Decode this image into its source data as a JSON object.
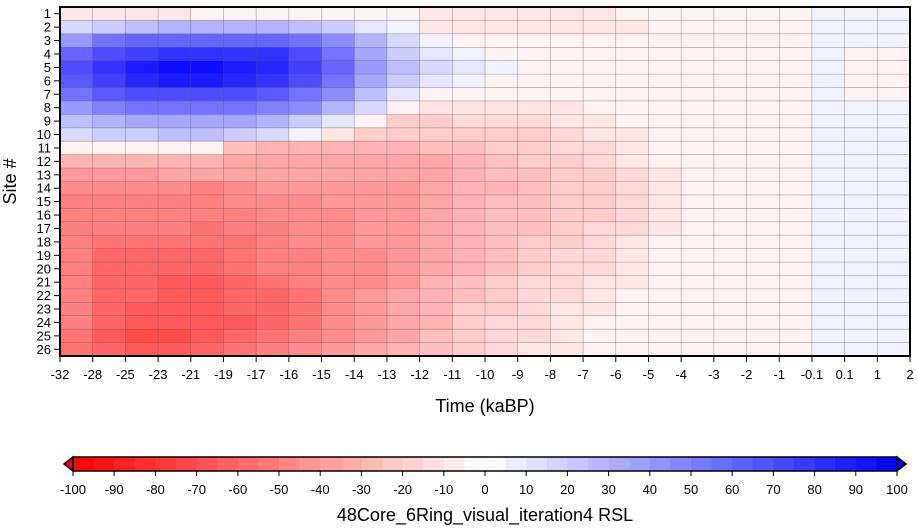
{
  "chart_data": {
    "type": "heatmap",
    "title": "",
    "xlabel": "Time (kaBP)",
    "ylabel": "Site #",
    "x_tick_labels": [
      "-32",
      "-28",
      "-25",
      "-23",
      "-21",
      "-19",
      "-17",
      "-16",
      "-15",
      "-14",
      "-13",
      "-12",
      "-11",
      "-10",
      "-9",
      "-8",
      "-7",
      "-6",
      "-5",
      "-4",
      "-3",
      "-2",
      "-1",
      "-0.1",
      "0.1",
      "1",
      "2"
    ],
    "y_tick_labels": [
      "1",
      "2",
      "3",
      "4",
      "5",
      "6",
      "7",
      "8",
      "9",
      "10",
      "11",
      "12",
      "13",
      "14",
      "15",
      "16",
      "17",
      "18",
      "19",
      "20",
      "21",
      "22",
      "23",
      "24",
      "25",
      "26"
    ],
    "colorbar": {
      "label": "48Core_6Ring_visual_iteration4 RSL",
      "ticks": [
        "-100",
        "-90",
        "-80",
        "-70",
        "-60",
        "-50",
        "-40",
        "-30",
        "-20",
        "-10",
        "0",
        "10",
        "20",
        "30",
        "40",
        "50",
        "60",
        "70",
        "80",
        "90",
        "100"
      ],
      "vmin": -100,
      "vmax": 100,
      "step": 5,
      "extend": "both",
      "color_min": "#ff0000",
      "color_mid": "#ffffff",
      "color_max": "#0000ff"
    },
    "values": [
      [
        -10,
        -10,
        -10,
        -10,
        -5,
        -5,
        -5,
        -5,
        -5,
        -5,
        -5,
        -10,
        -10,
        -10,
        -10,
        -10,
        -10,
        -5,
        -5,
        -5,
        -5,
        -5,
        -5,
        5,
        5,
        5
      ],
      [
        15,
        20,
        25,
        30,
        30,
        30,
        30,
        25,
        20,
        10,
        5,
        -10,
        -10,
        -10,
        -10,
        -10,
        -10,
        -10,
        -5,
        -5,
        -5,
        -5,
        -5,
        5,
        5,
        5
      ],
      [
        40,
        55,
        60,
        60,
        60,
        60,
        60,
        55,
        45,
        30,
        15,
        5,
        -5,
        -5,
        -5,
        -5,
        -5,
        -5,
        -5,
        -5,
        -5,
        -5,
        -5,
        5,
        5,
        5
      ],
      [
        60,
        70,
        75,
        80,
        80,
        80,
        80,
        70,
        55,
        35,
        20,
        10,
        5,
        -5,
        -5,
        -5,
        -5,
        -5,
        -5,
        -5,
        -5,
        -5,
        -5,
        5,
        -5,
        -5
      ],
      [
        70,
        80,
        90,
        95,
        95,
        90,
        85,
        75,
        60,
        40,
        25,
        15,
        10,
        5,
        -5,
        -5,
        -5,
        -5,
        -5,
        -5,
        -5,
        -5,
        -5,
        5,
        -5,
        -5
      ],
      [
        65,
        75,
        85,
        90,
        90,
        85,
        80,
        70,
        55,
        35,
        20,
        10,
        5,
        -5,
        -5,
        -5,
        -5,
        -5,
        -5,
        -5,
        -5,
        -5,
        -5,
        5,
        -5,
        -5
      ],
      [
        55,
        65,
        70,
        70,
        70,
        70,
        65,
        55,
        45,
        25,
        10,
        -5,
        -5,
        -5,
        -5,
        -5,
        -5,
        -5,
        -5,
        -5,
        -5,
        -5,
        -5,
        5,
        -5,
        -5
      ],
      [
        40,
        50,
        55,
        55,
        55,
        55,
        50,
        45,
        30,
        15,
        -5,
        -10,
        -10,
        -10,
        -10,
        -10,
        -5,
        -5,
        -5,
        -5,
        -5,
        -5,
        -5,
        5,
        5,
        5
      ],
      [
        25,
        30,
        35,
        35,
        35,
        35,
        30,
        20,
        10,
        -5,
        -20,
        -20,
        -15,
        -15,
        -15,
        -10,
        -10,
        -5,
        -5,
        -5,
        -5,
        -5,
        -5,
        5,
        5,
        5
      ],
      [
        15,
        20,
        20,
        25,
        25,
        20,
        15,
        5,
        -10,
        -20,
        -20,
        -20,
        -20,
        -20,
        -20,
        -15,
        -10,
        -10,
        -5,
        -5,
        -5,
        -5,
        -5,
        5,
        5,
        5
      ],
      [
        -5,
        -5,
        -5,
        -5,
        -5,
        -25,
        -30,
        -30,
        -30,
        -30,
        -30,
        -25,
        -25,
        -20,
        -20,
        -15,
        -15,
        -10,
        -5,
        -5,
        -5,
        -5,
        -5,
        5,
        5,
        5
      ],
      [
        -30,
        -30,
        -30,
        -30,
        -30,
        -35,
        -35,
        -35,
        -35,
        -35,
        -35,
        -35,
        -30,
        -25,
        -20,
        -20,
        -15,
        -10,
        -5,
        -5,
        -5,
        -5,
        -5,
        5,
        5,
        5
      ],
      [
        -40,
        -40,
        -40,
        -35,
        -35,
        -35,
        -35,
        -35,
        -35,
        -35,
        -35,
        -35,
        -30,
        -25,
        -25,
        -20,
        -20,
        -15,
        -10,
        -5,
        -5,
        -5,
        -5,
        5,
        5,
        5
      ],
      [
        -45,
        -45,
        -45,
        -45,
        -50,
        -45,
        -40,
        -40,
        -40,
        -40,
        -40,
        -35,
        -30,
        -30,
        -25,
        -20,
        -20,
        -15,
        -10,
        -5,
        -5,
        -5,
        -5,
        5,
        5,
        5
      ],
      [
        -50,
        -50,
        -50,
        -50,
        -50,
        -45,
        -45,
        -45,
        -40,
        -40,
        -40,
        -35,
        -30,
        -25,
        -25,
        -20,
        -20,
        -15,
        -10,
        -5,
        -5,
        -5,
        -5,
        5,
        5,
        5
      ],
      [
        -50,
        -50,
        -50,
        -50,
        -50,
        -50,
        -45,
        -45,
        -45,
        -40,
        -40,
        -35,
        -30,
        -25,
        -25,
        -20,
        -20,
        -15,
        -10,
        -5,
        -5,
        -5,
        -5,
        5,
        5,
        5
      ],
      [
        -50,
        -50,
        -50,
        -50,
        -55,
        -50,
        -50,
        -45,
        -45,
        -40,
        -40,
        -35,
        -30,
        -25,
        -25,
        -20,
        -15,
        -15,
        -10,
        -5,
        -5,
        -5,
        -5,
        5,
        5,
        5
      ],
      [
        -50,
        -55,
        -55,
        -55,
        -55,
        -55,
        -50,
        -45,
        -45,
        -40,
        -40,
        -35,
        -30,
        -25,
        -20,
        -20,
        -15,
        -10,
        -5,
        -5,
        -5,
        -5,
        -5,
        5,
        5,
        5
      ],
      [
        -50,
        -60,
        -60,
        -60,
        -60,
        -55,
        -50,
        -50,
        -45,
        -45,
        -40,
        -35,
        -30,
        -25,
        -20,
        -15,
        -15,
        -10,
        -5,
        -5,
        -5,
        -5,
        -5,
        5,
        5,
        5
      ],
      [
        -50,
        -60,
        -60,
        -60,
        -60,
        -55,
        -50,
        -50,
        -45,
        -45,
        -40,
        -35,
        -30,
        -25,
        -20,
        -15,
        -15,
        -10,
        -5,
        -5,
        -5,
        -5,
        -5,
        5,
        5,
        5
      ],
      [
        -50,
        -60,
        -60,
        -65,
        -65,
        -60,
        -55,
        -50,
        -45,
        -45,
        -40,
        -30,
        -25,
        -20,
        -15,
        -15,
        -10,
        -10,
        -5,
        -5,
        -5,
        -5,
        -5,
        5,
        5,
        5
      ],
      [
        -50,
        -60,
        -60,
        -65,
        -65,
        -60,
        -60,
        -55,
        -45,
        -40,
        -35,
        -30,
        -25,
        -20,
        -15,
        -15,
        -10,
        -5,
        -5,
        -5,
        -5,
        -5,
        -5,
        5,
        5,
        5
      ],
      [
        -50,
        -60,
        -65,
        -65,
        -65,
        -60,
        -60,
        -55,
        -45,
        -40,
        -35,
        -30,
        -20,
        -20,
        -15,
        -10,
        -10,
        -5,
        -5,
        -5,
        -5,
        -5,
        -5,
        5,
        5,
        5
      ],
      [
        -50,
        -60,
        -65,
        -65,
        -65,
        -65,
        -60,
        -55,
        -45,
        -40,
        -35,
        -30,
        -20,
        -15,
        -15,
        -10,
        -5,
        -5,
        -5,
        -5,
        -5,
        -5,
        -5,
        5,
        5,
        5
      ],
      [
        -55,
        -65,
        -70,
        -70,
        -65,
        -60,
        -55,
        -50,
        -45,
        -40,
        -35,
        -25,
        -20,
        -15,
        -15,
        -10,
        -5,
        -5,
        -5,
        -5,
        -5,
        -5,
        -5,
        5,
        5,
        5
      ],
      [
        -55,
        -60,
        -65,
        -65,
        -60,
        -55,
        -50,
        -45,
        -40,
        -35,
        -30,
        -25,
        -20,
        -15,
        -10,
        -10,
        -5,
        -5,
        -5,
        -5,
        -5,
        -5,
        -5,
        5,
        5,
        5
      ]
    ]
  }
}
